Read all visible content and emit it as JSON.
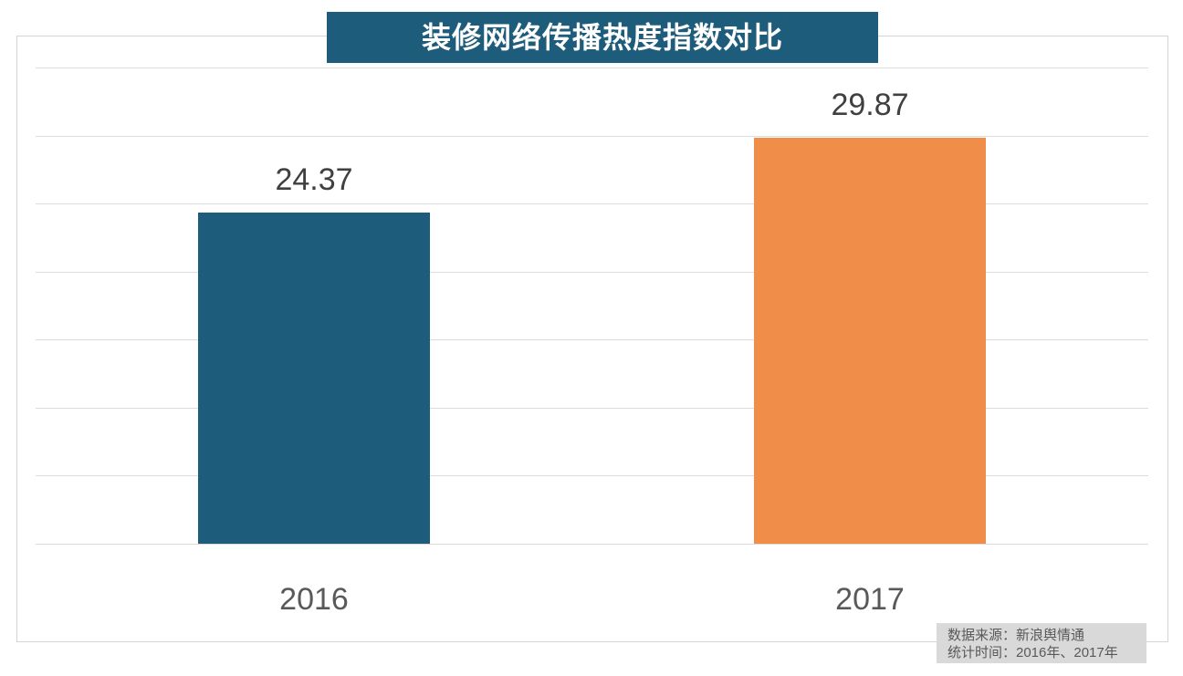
{
  "title": "装修网络传播热度指数对比",
  "chart_data": {
    "type": "bar",
    "title": "装修网络传播热度指数对比",
    "categories": [
      "2016",
      "2017"
    ],
    "values": [
      24.37,
      29.87
    ],
    "value_labels": [
      "24.37",
      "29.87"
    ],
    "bar_colors": [
      "#1e5c7b",
      "#ef8d49"
    ],
    "ylim": [
      0,
      35
    ],
    "gridline_step": 5,
    "grid": true,
    "legend": "none",
    "source_line1": "数据来源：新浪舆情通",
    "source_line2": "统计时间：2016年、2017年"
  },
  "colors": {
    "title_bg": "#1e5c7b",
    "title_text": "#ffffff",
    "bar_2016": "#1e5c7b",
    "bar_2017": "#ef8d49",
    "gridline": "#dcdcdc",
    "frame_border": "#d4d4d4",
    "value_label_text": "#404040",
    "category_label_text": "#595959",
    "source_bg": "#d9d9d9",
    "source_text": "#595959"
  }
}
